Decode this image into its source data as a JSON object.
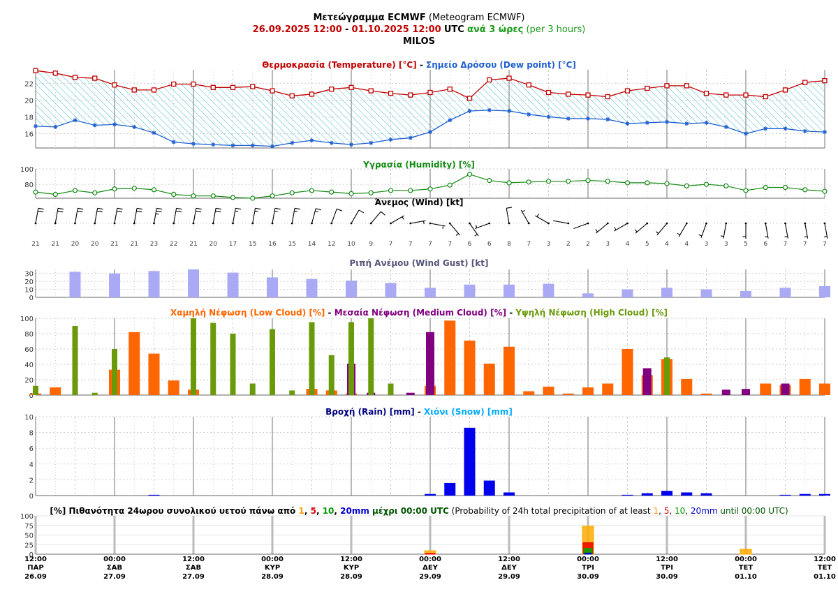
{
  "header": {
    "title_bold": "Μετεώγραμμα ECMWF",
    "title_rest": "(Meteogram ECMWF)",
    "date_start": "26.09.2025 12:00",
    "date_sep": "-",
    "date_end": "01.10.2025 12:00",
    "utc": "UTC",
    "step_bold": "ανά 3 ώρες",
    "step_rest": "(per 3 hours)",
    "location": "MILOS"
  },
  "chart_data": [
    {
      "type": "line",
      "title_parts": [
        {
          "text": "Θερμοκρασία (Temperature) [°C]",
          "color": "#c00000"
        },
        {
          "text": " - ",
          "color": "#000000"
        },
        {
          "text": "Σημείο Δρόσου (Dew point) [°C]",
          "color": "#1f5fd0"
        }
      ],
      "ylim": [
        14.3,
        23.6
      ],
      "yticks": [
        16,
        18,
        20,
        22
      ],
      "series": [
        {
          "name": "Temperature",
          "color": "#c00000",
          "values": [
            23.5,
            23.2,
            22.7,
            22.6,
            21.8,
            21.2,
            21.2,
            21.9,
            21.9,
            21.5,
            21.5,
            21.6,
            21.1,
            20.5,
            20.7,
            21.3,
            21.5,
            21.1,
            20.8,
            20.6,
            20.9,
            21.3,
            20.2,
            22.4,
            22.6,
            21.8,
            20.9,
            20.7,
            20.6,
            20.4,
            21.1,
            21.4,
            21.7,
            21.7,
            20.8,
            20.6,
            20.6,
            20.4,
            21.2,
            22.1,
            22.3
          ]
        },
        {
          "name": "Dew point",
          "color": "#1f5fd0",
          "values": [
            16.9,
            16.8,
            17.6,
            17.0,
            17.1,
            16.8,
            16.1,
            15.0,
            14.8,
            14.7,
            14.6,
            14.6,
            14.5,
            14.9,
            15.2,
            14.9,
            14.7,
            14.9,
            15.3,
            15.5,
            16.2,
            17.6,
            18.7,
            18.8,
            18.7,
            18.3,
            18.0,
            17.8,
            17.8,
            17.7,
            17.2,
            17.3,
            17.4,
            17.2,
            17.3,
            16.8,
            16.0,
            16.6,
            16.6,
            16.3,
            16.2
          ]
        }
      ]
    },
    {
      "type": "line",
      "title_parts": [
        {
          "text": "Υγρασία (Humidity) [%]",
          "color": "#128a12"
        }
      ],
      "ylim": [
        62,
        100
      ],
      "yticks": [
        80,
        100
      ],
      "series": [
        {
          "name": "Humidity",
          "color": "#128a12",
          "values": [
            70,
            67,
            72,
            69,
            74,
            75,
            73,
            67,
            65,
            65,
            63,
            62,
            65,
            69,
            72,
            70,
            68,
            69,
            72,
            72,
            74,
            79,
            93,
            85,
            82,
            83,
            84,
            84,
            85,
            84,
            82,
            82,
            81,
            78,
            80,
            78,
            72,
            76,
            76,
            73,
            71
          ]
        }
      ]
    },
    {
      "type": "wind",
      "title_parts": [
        {
          "text": "Άνεμος (Wind) [kt]",
          "color": "#000000"
        }
      ],
      "speed_labels": [
        "21",
        "21",
        "20",
        "20",
        "21",
        "21",
        "23",
        "22",
        "21",
        "20",
        "17",
        "15",
        "16",
        "15",
        "14",
        "12",
        "10",
        "9",
        "7",
        "7",
        "7",
        "7",
        "6",
        "6",
        "8",
        "7",
        "3",
        "2",
        "2",
        "3",
        "4",
        "5",
        "4",
        "4",
        "3",
        "3",
        "5",
        "6",
        "7",
        "7",
        "7"
      ],
      "direction_deg": [
        10,
        10,
        10,
        10,
        10,
        10,
        10,
        10,
        10,
        10,
        10,
        10,
        10,
        10,
        15,
        20,
        30,
        40,
        60,
        80,
        100,
        140,
        145,
        250,
        350,
        330,
        300,
        280,
        250,
        230,
        240,
        230,
        220,
        210,
        200,
        190,
        180,
        170,
        170,
        170,
        170
      ]
    },
    {
      "type": "bar",
      "title_parts": [
        {
          "text": "Ριπή Ανέμου (Wind Gust) [kt]",
          "color": "#55557a"
        }
      ],
      "ylim": [
        0,
        35
      ],
      "yticks": [
        0,
        10,
        20,
        30
      ],
      "color": "#a9a9f5",
      "values": [
        32,
        30,
        33,
        35,
        31,
        25,
        23,
        21,
        18,
        12,
        16,
        16,
        17,
        5,
        10,
        12,
        10,
        8,
        12,
        14
      ]
    },
    {
      "type": "bar",
      "title_parts": [
        {
          "text": "Χαμηλή Νέφωση (Low Cloud) [%]",
          "color": "#ff6600"
        },
        {
          "text": " - ",
          "color": "#000000"
        },
        {
          "text": "Μεσαία Νέφωση (Medium Cloud) [%]",
          "color": "#800080"
        },
        {
          "text": " - ",
          "color": "#000000"
        },
        {
          "text": "Υψηλή Νέφωση (High Cloud) [%]",
          "color": "#6a9a0a"
        }
      ],
      "ylim": [
        0,
        100
      ],
      "yticks": [
        0,
        20,
        40,
        60,
        80,
        100
      ],
      "series": [
        {
          "name": "Low Cloud",
          "color": "#ff6600",
          "values": [
            2,
            10,
            0,
            0,
            33,
            82,
            54,
            19,
            7,
            0,
            0,
            0,
            0,
            0,
            8,
            6,
            2,
            0,
            0,
            0,
            12,
            97,
            71,
            41,
            63,
            5,
            11,
            2,
            10,
            15,
            60,
            26,
            47,
            21,
            2,
            0,
            0,
            15,
            13,
            21,
            15
          ]
        },
        {
          "name": "Medium Cloud",
          "color": "#800080",
          "values": [
            0,
            0,
            0,
            0,
            0,
            0,
            0,
            0,
            0,
            0,
            0,
            0,
            0,
            0,
            0,
            0,
            41,
            3,
            0,
            3,
            82,
            0,
            0,
            0,
            0,
            0,
            0,
            0,
            0,
            0,
            0,
            35,
            0,
            0,
            0,
            7,
            8,
            0,
            15,
            0,
            0
          ]
        },
        {
          "name": "High Cloud",
          "color": "#6a9a0a",
          "values": [
            12,
            0,
            90,
            3,
            60,
            0,
            0,
            0,
            100,
            94,
            80,
            15,
            86,
            6,
            95,
            52,
            95,
            100,
            15,
            0,
            0,
            0,
            0,
            0,
            0,
            0,
            0,
            0,
            0,
            0,
            0,
            0,
            49,
            0,
            0,
            0,
            0,
            0,
            0,
            0,
            0
          ]
        }
      ]
    },
    {
      "type": "bar",
      "title_parts": [
        {
          "text": "Βροχή (Rain) [mm]",
          "color": "#000080"
        },
        {
          "text": " - ",
          "color": "#000000"
        },
        {
          "text": "Χιόνι (Snow) [mm]",
          "color": "#00aaff"
        }
      ],
      "ylim": [
        0,
        10
      ],
      "yticks": [
        0,
        2,
        4,
        6,
        8,
        10
      ],
      "series": [
        {
          "name": "Rain",
          "color": "#0000ee",
          "values": [
            0,
            0,
            0,
            0,
            0,
            0,
            0.1,
            0,
            0,
            0,
            0,
            0,
            0,
            0,
            0,
            0,
            0,
            0,
            0,
            0,
            0.2,
            1.6,
            8.6,
            1.9,
            0.4,
            0,
            0,
            0,
            0,
            0,
            0.1,
            0.3,
            0.6,
            0.4,
            0.3,
            0,
            0,
            0,
            0.1,
            0.2,
            0.2
          ]
        },
        {
          "name": "Snow",
          "color": "#00aaff",
          "values": [
            0,
            0,
            0,
            0,
            0,
            0,
            0,
            0,
            0,
            0,
            0,
            0,
            0,
            0,
            0,
            0,
            0,
            0,
            0,
            0,
            0,
            0,
            0,
            0,
            0,
            0,
            0,
            0,
            0,
            0,
            0,
            0,
            0,
            0,
            0,
            0,
            0,
            0,
            0,
            0,
            0
          ]
        }
      ]
    },
    {
      "type": "bar",
      "title_parts": [
        {
          "text": "[%] Πιθανότητα 24ωρου συνολικού υετού πάνω από ",
          "color": "#000000",
          "bold": true
        },
        {
          "text": "1",
          "color": "#ff9900",
          "bold": true
        },
        {
          "text": ", ",
          "color": "#000000",
          "bold": true
        },
        {
          "text": "5",
          "color": "#dd0000",
          "bold": true
        },
        {
          "text": ", ",
          "color": "#000000",
          "bold": true
        },
        {
          "text": "10",
          "color": "#009900",
          "bold": true
        },
        {
          "text": ", ",
          "color": "#000000",
          "bold": true
        },
        {
          "text": "20mm",
          "color": "#0000cc",
          "bold": true
        },
        {
          "text": " μέχρι 00:00 UTC",
          "color": "#005500",
          "bold": true
        },
        {
          "text": " (Probability of 24h total precipitation of at least ",
          "color": "#000000",
          "bold": false
        },
        {
          "text": "1",
          "color": "#ff9900",
          "bold": false
        },
        {
          "text": ", ",
          "color": "#000000",
          "bold": false
        },
        {
          "text": "5",
          "color": "#dd0000",
          "bold": false
        },
        {
          "text": ", ",
          "color": "#000000",
          "bold": false
        },
        {
          "text": "10",
          "color": "#009900",
          "bold": false
        },
        {
          "text": ", ",
          "color": "#000000",
          "bold": false
        },
        {
          "text": "20mm",
          "color": "#0000cc",
          "bold": false
        },
        {
          "text": " until 00:00 UTC)",
          "color": "#005500",
          "bold": false
        }
      ],
      "ylim": [
        0,
        100
      ],
      "yticks": [
        0,
        25,
        50,
        75,
        100
      ],
      "categories": [
        "29.09 00:00",
        "30.09 00:00",
        "01.10 00:00"
      ],
      "series": [
        {
          "name": "1",
          "color": "#ffaa00",
          "values": [
            9,
            73,
            13
          ]
        },
        {
          "name": "5",
          "color": "#ee0000",
          "values": [
            2,
            30,
            0
          ]
        },
        {
          "name": "10",
          "color": "#00aa00",
          "values": [
            0,
            15,
            0
          ]
        },
        {
          "name": "20",
          "color": "#0000cc",
          "values": [
            0,
            3,
            0
          ]
        }
      ]
    }
  ],
  "x_axis": {
    "ticks": [
      {
        "time": "12:00",
        "day": "ΠΑΡ",
        "date": "26.09"
      },
      {
        "time": "00:00",
        "day": "ΣΑΒ",
        "date": "27.09"
      },
      {
        "time": "12:00",
        "day": "ΣΑΒ",
        "date": "27.09"
      },
      {
        "time": "00:00",
        "day": "ΚΥΡ",
        "date": "28.09"
      },
      {
        "time": "12:00",
        "day": "ΚΥΡ",
        "date": "28.09"
      },
      {
        "time": "00:00",
        "day": "ΔΕΥ",
        "date": "29.09"
      },
      {
        "time": "12:00",
        "day": "ΔΕΥ",
        "date": "29.09"
      },
      {
        "time": "00:00",
        "day": "ΤΡΙ",
        "date": "30.09"
      },
      {
        "time": "12:00",
        "day": "ΤΡΙ",
        "date": "30.09"
      },
      {
        "time": "00:00",
        "day": "ΤΕΤ",
        "date": "01.10"
      },
      {
        "time": "12:00",
        "day": "ΤΕΤ",
        "date": "01.10"
      }
    ]
  }
}
